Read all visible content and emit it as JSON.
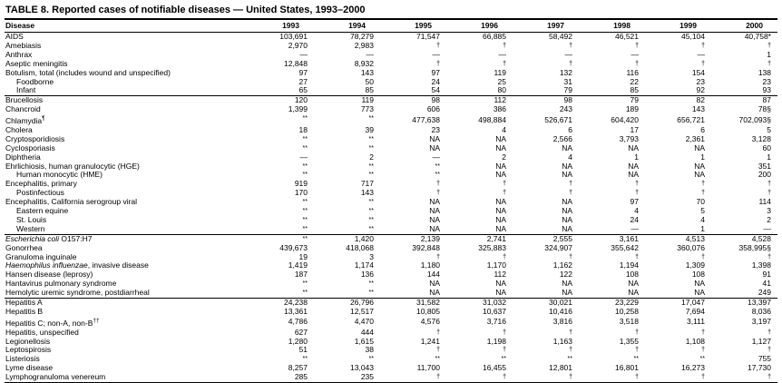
{
  "page": {
    "title": "TABLE 8. Reported cases of notifiable diseases — United States, 1993–2000"
  },
  "table": {
    "columns": [
      "Disease",
      "1993",
      "1994",
      "1995",
      "1996",
      "1997",
      "1998",
      "1999",
      "2000"
    ],
    "rows": [
      {
        "disease": "AIDS",
        "values": [
          "103,691",
          "78,279",
          "71,547",
          "66,885",
          "58,492",
          "46,521",
          "45,104",
          "40,758*"
        ]
      },
      {
        "disease": "Amebiasis",
        "values": [
          "2,970",
          "2,983",
          "†",
          "†",
          "†",
          "†",
          "†",
          "†"
        ]
      },
      {
        "disease": "Anthrax",
        "values": [
          "—",
          "—",
          "—",
          "—",
          "—",
          "—",
          "—",
          "1"
        ]
      },
      {
        "disease": "Aseptic meningitis",
        "values": [
          "12,848",
          "8,932",
          "†",
          "†",
          "†",
          "†",
          "†",
          "†"
        ]
      },
      {
        "disease": "Botulism, total (includes wound and unspecified)",
        "values": [
          "97",
          "143",
          "97",
          "119",
          "132",
          "116",
          "154",
          "138"
        ]
      },
      {
        "disease": "Foodborne",
        "indent": 1,
        "values": [
          "27",
          "50",
          "24",
          "25",
          "31",
          "22",
          "23",
          "23"
        ]
      },
      {
        "disease": "Infant",
        "indent": 1,
        "group_end": true,
        "values": [
          "65",
          "85",
          "54",
          "80",
          "79",
          "85",
          "92",
          "93"
        ]
      },
      {
        "disease": "Brucellosis",
        "values": [
          "120",
          "119",
          "98",
          "112",
          "98",
          "79",
          "82",
          "87"
        ]
      },
      {
        "disease": "Chancroid",
        "values": [
          "1,399",
          "773",
          "606",
          "386",
          "243",
          "189",
          "143",
          "78§"
        ]
      },
      {
        "disease": "Chlamydia¶",
        "name_parts": [
          {
            "text": "Chlamydia"
          },
          {
            "text": "¶",
            "sup": true
          }
        ],
        "values": [
          "**",
          "**",
          "477,638",
          "498,884",
          "526,671",
          "604,420",
          "656,721",
          "702,093§"
        ]
      },
      {
        "disease": "Cholera",
        "values": [
          "18",
          "39",
          "23",
          "4",
          "6",
          "17",
          "6",
          "5"
        ]
      },
      {
        "disease": "Cryptosporidiosis",
        "values": [
          "**",
          "**",
          "NA",
          "NA",
          "2,566",
          "3,793",
          "2,361",
          "3,128"
        ]
      },
      {
        "disease": "Cyclosporiasis",
        "values": [
          "**",
          "**",
          "NA",
          "NA",
          "NA",
          "NA",
          "NA",
          "60"
        ]
      },
      {
        "disease": "Diphtheria",
        "values": [
          "—",
          "2",
          "—",
          "2",
          "4",
          "1",
          "1",
          "1"
        ]
      },
      {
        "disease": "Ehrlichiosis, human granulocytic (HGE)",
        "values": [
          "**",
          "**",
          "**",
          "NA",
          "NA",
          "NA",
          "NA",
          "351"
        ]
      },
      {
        "disease": "Human monocytic (HME)",
        "indent": 1,
        "values": [
          "**",
          "**",
          "**",
          "NA",
          "NA",
          "NA",
          "NA",
          "200"
        ]
      },
      {
        "disease": "Encephalitis, primary",
        "values": [
          "919",
          "717",
          "†",
          "†",
          "†",
          "†",
          "†",
          "†"
        ]
      },
      {
        "disease": "Postinfectious",
        "indent": 1,
        "values": [
          "170",
          "143",
          "†",
          "†",
          "†",
          "†",
          "†",
          "†"
        ]
      },
      {
        "disease": "Encephalitis, California serogroup viral",
        "values": [
          "**",
          "**",
          "NA",
          "NA",
          "NA",
          "97",
          "70",
          "114"
        ]
      },
      {
        "disease": "Eastern equine",
        "indent": 1,
        "values": [
          "**",
          "**",
          "NA",
          "NA",
          "NA",
          "4",
          "5",
          "3"
        ]
      },
      {
        "disease": "St. Louis",
        "indent": 1,
        "values": [
          "**",
          "**",
          "NA",
          "NA",
          "NA",
          "24",
          "4",
          "2"
        ]
      },
      {
        "disease": "Western",
        "indent": 1,
        "group_end": true,
        "values": [
          "**",
          "**",
          "NA",
          "NA",
          "NA",
          "—",
          "1",
          "—"
        ]
      },
      {
        "disease": "Escherichia coli O157:H7",
        "name_parts": [
          {
            "text": "Escherichia coli",
            "italic": true
          },
          {
            "text": " O157:H7"
          }
        ],
        "values": [
          "**",
          "1,420",
          "2,139",
          "2,741",
          "2,555",
          "3,161",
          "4,513",
          "4,528"
        ]
      },
      {
        "disease": "Gonorrhea",
        "values": [
          "439,673",
          "418,068",
          "392,848",
          "325,883",
          "324,907",
          "355,642",
          "360,076",
          "358,995§"
        ]
      },
      {
        "disease": "Granuloma inguinale",
        "values": [
          "19",
          "3",
          "†",
          "†",
          "†",
          "†",
          "†",
          "†"
        ]
      },
      {
        "disease": "Haemophilus influenzae, invasive disease",
        "name_parts": [
          {
            "text": "Haemophilus influenzae",
            "italic": true
          },
          {
            "text": ", invasive disease"
          }
        ],
        "values": [
          "1,419",
          "1,174",
          "1,180",
          "1,170",
          "1,162",
          "1,194",
          "1,309",
          "1,398"
        ]
      },
      {
        "disease": "Hansen disease (leprosy)",
        "values": [
          "187",
          "136",
          "144",
          "112",
          "122",
          "108",
          "108",
          "91"
        ]
      },
      {
        "disease": "Hantavirus pulmonary syndrome",
        "values": [
          "**",
          "**",
          "NA",
          "NA",
          "NA",
          "NA",
          "NA",
          "41"
        ]
      },
      {
        "disease": "Hemolytic uremic syndrome, postdiarrheal",
        "group_end": true,
        "values": [
          "**",
          "**",
          "NA",
          "NA",
          "NA",
          "NA",
          "NA",
          "249"
        ]
      },
      {
        "disease": "Hepatitis A",
        "values": [
          "24,238",
          "26,796",
          "31,582",
          "31,032",
          "30,021",
          "23,229",
          "17,047",
          "13,397"
        ]
      },
      {
        "disease": "Hepatitis B",
        "values": [
          "13,361",
          "12,517",
          "10,805",
          "10,637",
          "10,416",
          "10,258",
          "7,694",
          "8,036"
        ]
      },
      {
        "disease": "Hepatitis C; non-A, non-B††",
        "name_parts": [
          {
            "text": "Hepatitis C; non-A, non-B"
          },
          {
            "text": "††",
            "sup": true
          }
        ],
        "values": [
          "4,786",
          "4,470",
          "4,576",
          "3,716",
          "3,816",
          "3,518",
          "3,111",
          "3,197"
        ]
      },
      {
        "disease": "Hepatitis, unspecified",
        "values": [
          "627",
          "444",
          "†",
          "†",
          "†",
          "†",
          "†",
          "†"
        ]
      },
      {
        "disease": "Legionellosis",
        "values": [
          "1,280",
          "1,615",
          "1,241",
          "1,198",
          "1,163",
          "1,355",
          "1,108",
          "1,127"
        ]
      },
      {
        "disease": "Leptospirosis",
        "values": [
          "51",
          "38",
          "†",
          "†",
          "†",
          "†",
          "†",
          "†"
        ]
      },
      {
        "disease": "Listeriosis",
        "values": [
          "**",
          "**",
          "**",
          "**",
          "**",
          "**",
          "**",
          "755"
        ]
      },
      {
        "disease": "Lyme disease",
        "values": [
          "8,257",
          "13,043",
          "11,700",
          "16,455",
          "12,801",
          "16,801",
          "16,273",
          "17,730"
        ]
      },
      {
        "disease": "Lymphogranuloma venereum",
        "group_end": true,
        "values": [
          "285",
          "235",
          "†",
          "†",
          "†",
          "†",
          "†",
          "†"
        ]
      }
    ]
  }
}
